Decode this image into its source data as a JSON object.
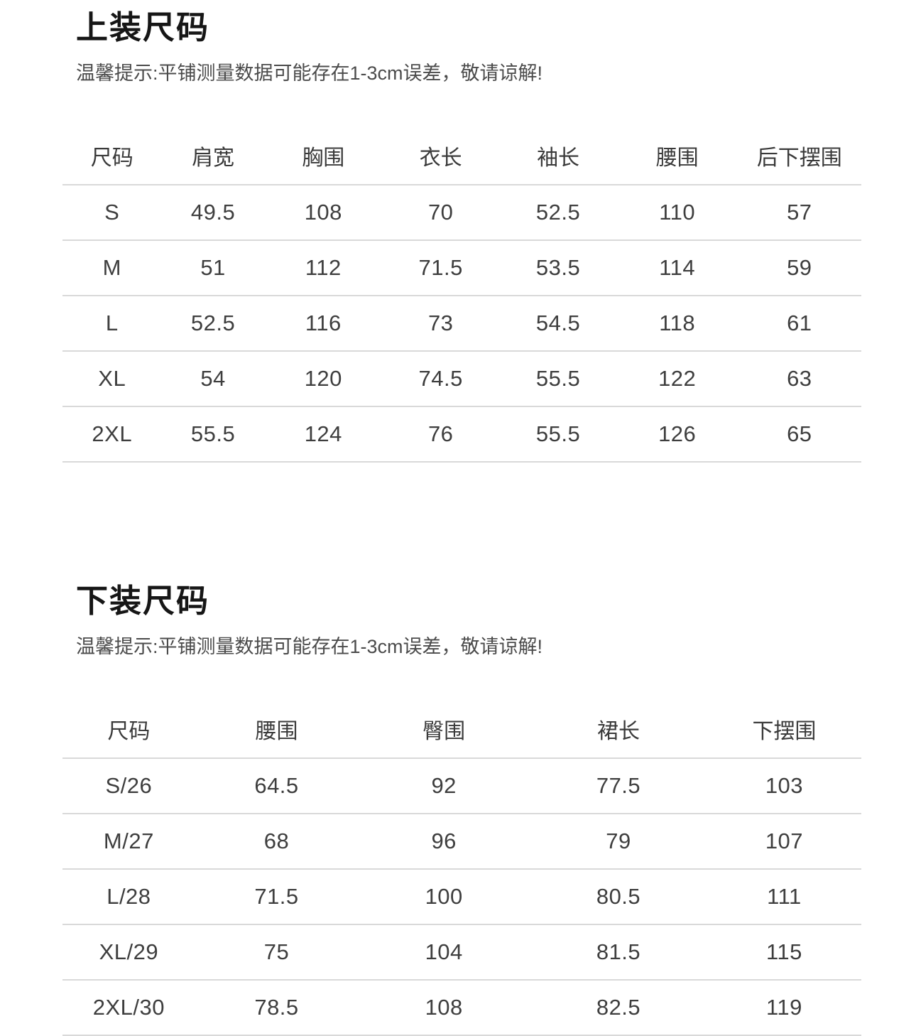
{
  "page": {
    "background": "#ffffff",
    "text_color": "#3e3e3e",
    "title_color": "#161616",
    "divider_color": "#d9d9d9"
  },
  "tops": {
    "title": "上装尺码",
    "note": "温馨提示:平铺测量数据可能存在1-3cm误差，敬请谅解!",
    "columns": [
      "尺码",
      "肩宽",
      "胸围",
      "衣长",
      "袖长",
      "腰围",
      "后下摆围"
    ],
    "rows": [
      [
        "S",
        "49.5",
        "108",
        "70",
        "52.5",
        "110",
        "57"
      ],
      [
        "M",
        "51",
        "112",
        "71.5",
        "53.5",
        "114",
        "59"
      ],
      [
        "L",
        "52.5",
        "116",
        "73",
        "54.5",
        "118",
        "61"
      ],
      [
        "XL",
        "54",
        "120",
        "74.5",
        "55.5",
        "122",
        "63"
      ],
      [
        "2XL",
        "55.5",
        "124",
        "76",
        "55.5",
        "126",
        "65"
      ]
    ]
  },
  "bottoms": {
    "title": "下装尺码",
    "note": "温馨提示:平铺测量数据可能存在1-3cm误差，敬请谅解!",
    "columns": [
      "尺码",
      "腰围",
      "臀围",
      "裙长",
      "下摆围"
    ],
    "rows": [
      [
        "S/26",
        "64.5",
        "92",
        "77.5",
        "103"
      ],
      [
        "M/27",
        "68",
        "96",
        "79",
        "107"
      ],
      [
        "L/28",
        "71.5",
        "100",
        "80.5",
        "111"
      ],
      [
        "XL/29",
        "75",
        "104",
        "81.5",
        "115"
      ],
      [
        "2XL/30",
        "78.5",
        "108",
        "82.5",
        "119"
      ]
    ]
  }
}
